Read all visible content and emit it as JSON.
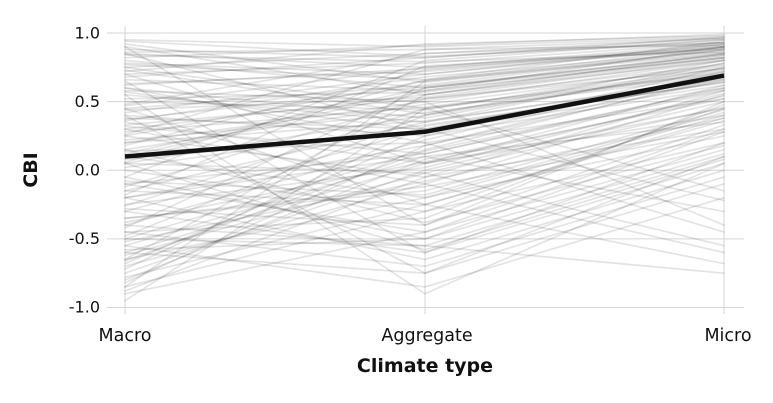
{
  "chart_data": {
    "type": "line",
    "variant": "parallel-coordinates-slopegraph",
    "title": "",
    "xlabel": "Climate type",
    "ylabel": "CBI",
    "categories": [
      "Macro",
      "Aggregate",
      "Micro"
    ],
    "ytick_values": [
      1.0,
      0.5,
      0.0,
      -0.5,
      -1.0
    ],
    "ytick_labels": [
      "1.0",
      "0.5",
      "0.0",
      "-0.5",
      "-1.0"
    ],
    "ylim": [
      -1.05,
      1.05
    ],
    "grid": "horizontal gridlines at y ticks plus one vertical line per category",
    "legend": "none",
    "colors": {
      "mean_line": "#111111",
      "observation_line": "#000000",
      "gridline": "#d6d6d6",
      "text": "#111111",
      "background": "#ffffff"
    },
    "mean_series": {
      "name": "mean",
      "values": [
        0.1,
        0.28,
        0.69
      ]
    },
    "observations": {
      "opacity": 0.11,
      "stroke_width": 1.7,
      "values": [
        [
          0.95,
          0.9,
          0.97
        ],
        [
          0.88,
          0.82,
          0.95
        ],
        [
          0.82,
          0.91,
          0.99
        ],
        [
          0.78,
          0.7,
          0.92
        ],
        [
          0.85,
          0.75,
          0.9
        ],
        [
          0.92,
          0.64,
          0.88
        ],
        [
          0.75,
          0.85,
          0.96
        ],
        [
          0.7,
          0.78,
          0.93
        ],
        [
          0.86,
          0.88,
          0.91
        ],
        [
          0.63,
          0.72,
          0.89
        ],
        [
          0.8,
          0.6,
          0.85
        ],
        [
          0.68,
          0.82,
          0.97
        ],
        [
          0.9,
          0.55,
          0.82
        ],
        [
          0.77,
          0.66,
          0.94
        ],
        [
          0.84,
          0.79,
          0.86
        ],
        [
          0.72,
          0.92,
          0.98
        ],
        [
          0.66,
          0.58,
          0.9
        ],
        [
          0.94,
          0.83,
          0.93
        ],
        [
          0.45,
          0.62,
          0.88
        ],
        [
          0.3,
          0.55,
          0.8
        ],
        [
          0.15,
          0.48,
          0.76
        ],
        [
          0.05,
          0.4,
          0.72
        ],
        [
          0.25,
          0.65,
          0.85
        ],
        [
          0.38,
          0.3,
          0.7
        ],
        [
          0.1,
          0.58,
          0.82
        ],
        [
          0.5,
          0.44,
          0.78
        ],
        [
          0.2,
          0.36,
          0.66
        ],
        [
          0.42,
          0.7,
          0.9
        ],
        [
          0.33,
          0.52,
          0.74
        ],
        [
          0.08,
          0.28,
          0.62
        ],
        [
          0.55,
          0.35,
          0.68
        ],
        [
          0.47,
          0.75,
          0.92
        ],
        [
          0.12,
          0.6,
          0.84
        ],
        [
          0.28,
          0.46,
          0.71
        ],
        [
          0.58,
          0.5,
          0.8
        ],
        [
          0.02,
          0.33,
          0.64
        ],
        [
          0.36,
          0.68,
          0.87
        ],
        [
          0.22,
          0.42,
          0.69
        ],
        [
          0.52,
          0.57,
          0.83
        ],
        [
          0.4,
          0.25,
          0.6
        ],
        [
          0.18,
          0.73,
          0.91
        ],
        [
          0.6,
          0.38,
          0.75
        ],
        [
          -0.85,
          -0.3,
          0.45
        ],
        [
          -0.7,
          -0.1,
          0.55
        ],
        [
          -0.6,
          0.05,
          0.62
        ],
        [
          -0.9,
          -0.45,
          0.3
        ],
        [
          -0.5,
          0.15,
          0.68
        ],
        [
          -0.75,
          0.0,
          0.5
        ],
        [
          -0.4,
          0.22,
          0.72
        ],
        [
          -0.65,
          -0.2,
          0.4
        ],
        [
          -0.3,
          0.3,
          0.65
        ],
        [
          -0.88,
          -0.05,
          0.58
        ],
        [
          -0.55,
          0.1,
          0.35
        ],
        [
          -0.45,
          -0.35,
          0.48
        ],
        [
          -0.2,
          0.18,
          0.7
        ],
        [
          -0.8,
          0.08,
          0.52
        ],
        [
          -0.35,
          -0.15,
          0.44
        ],
        [
          -0.68,
          0.25,
          0.75
        ],
        [
          -0.25,
          0.02,
          0.56
        ],
        [
          -0.58,
          -0.5,
          0.28
        ],
        [
          -0.15,
          0.35,
          0.78
        ],
        [
          -0.78,
          -0.25,
          0.36
        ],
        [
          -0.48,
          0.4,
          0.8
        ],
        [
          -0.1,
          0.12,
          0.6
        ],
        [
          -0.62,
          -0.02,
          0.46
        ],
        [
          -0.28,
          -0.4,
          0.33
        ],
        [
          -0.82,
          0.18,
          0.66
        ],
        [
          -0.38,
          0.06,
          0.54
        ],
        [
          -0.5,
          -0.55,
          0.1
        ],
        [
          -0.3,
          -0.6,
          0.05
        ],
        [
          0.1,
          -0.2,
          0.25
        ],
        [
          -0.1,
          -0.45,
          0.15
        ],
        [
          0.25,
          -0.05,
          0.3
        ],
        [
          -0.45,
          -0.7,
          -0.05
        ],
        [
          0.0,
          -0.3,
          0.2
        ],
        [
          -0.2,
          -0.65,
          0.0
        ],
        [
          0.35,
          0.05,
          0.4
        ],
        [
          -0.05,
          -0.5,
          0.12
        ],
        [
          -0.6,
          -0.75,
          -0.1
        ],
        [
          0.15,
          -0.38,
          0.18
        ],
        [
          -0.35,
          -0.12,
          0.28
        ],
        [
          0.05,
          -0.58,
          0.08
        ],
        [
          -0.15,
          -0.25,
          0.38
        ],
        [
          -0.55,
          -0.85,
          -0.2
        ],
        [
          0.6,
          0.2,
          -0.45
        ],
        [
          0.3,
          -0.1,
          -0.6
        ],
        [
          -0.2,
          0.1,
          -0.3
        ],
        [
          0.75,
          0.45,
          -0.15
        ],
        [
          0.45,
          -0.25,
          -0.68
        ],
        [
          -0.4,
          -0.55,
          -0.75
        ],
        [
          0.2,
          0.5,
          -0.4
        ],
        [
          0.85,
          0.3,
          -0.22
        ],
        [
          0.05,
          -0.02,
          -0.55
        ],
        [
          0.9,
          -0.4,
          0.5
        ],
        [
          -0.65,
          0.55,
          0.85
        ],
        [
          0.65,
          -0.6,
          0.2
        ],
        [
          -0.85,
          0.65,
          0.9
        ],
        [
          0.4,
          -0.75,
          0.1
        ],
        [
          -0.05,
          0.8,
          0.95
        ],
        [
          0.7,
          0.05,
          0.45
        ],
        [
          -0.95,
          0.45,
          0.7
        ],
        [
          0.55,
          -0.9,
          0.05
        ],
        [
          0.48,
          0.85,
          0.93
        ],
        [
          -0.12,
          0.52,
          0.77
        ],
        [
          0.32,
          0.12,
          0.58
        ],
        [
          -0.72,
          0.32,
          0.64
        ],
        [
          0.14,
          0.2,
          0.52
        ],
        [
          -0.42,
          0.6,
          0.82
        ],
        [
          0.62,
          0.74,
          0.89
        ],
        [
          -0.08,
          -0.18,
          0.42
        ],
        [
          0.26,
          0.88,
          0.96
        ],
        [
          -0.52,
          -0.08,
          0.38
        ],
        [
          0.06,
          0.66,
          0.86
        ],
        [
          0.73,
          0.41,
          0.73
        ],
        [
          -0.26,
          0.45,
          0.74
        ],
        [
          0.44,
          0.53,
          0.81
        ],
        [
          -0.66,
          0.14,
          0.59
        ],
        [
          0.57,
          0.29,
          0.67
        ],
        [
          -0.18,
          0.76,
          0.88
        ],
        [
          0.37,
          0.61,
          0.84
        ]
      ]
    }
  }
}
